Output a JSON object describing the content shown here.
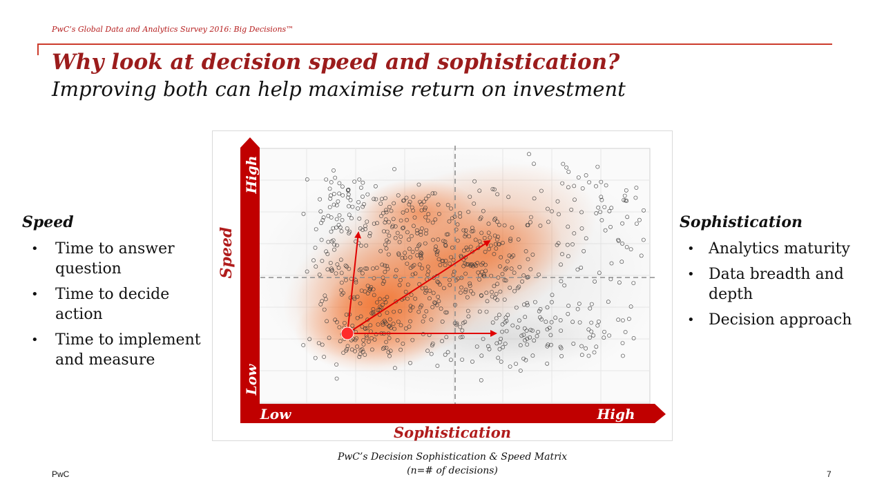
{
  "header": {
    "survey_label": "PwC’s Global Data and Analytics Survey 2016: Big Decisions™",
    "title": "Why look at decision speed and sophistication?",
    "subtitle": "Improving both can help maximise return on investment"
  },
  "speed": {
    "heading": "Speed",
    "bullets": [
      "Time to answer question",
      "Time to decide action",
      "Time to implement and measure"
    ]
  },
  "sophistication": {
    "heading": "Sophistication",
    "bullets": [
      "Analytics maturity",
      "Data breadth and depth",
      "Decision approach"
    ]
  },
  "chart": {
    "y_axis_title": "Speed",
    "y_high": "High",
    "y_low": "Low",
    "x_axis_title": "Sophistication",
    "x_low": "Low",
    "x_high": "High",
    "caption_line1": "PwC’s Decision Sophistication & Speed Matrix",
    "caption_line2": "(n=# of decisions)"
  },
  "colors": {
    "brand_red": "#c00000",
    "title_red": "#9b1c1c",
    "density_orange": "#f26a21"
  },
  "footer": {
    "brand": "PwC",
    "page_number": "7"
  }
}
